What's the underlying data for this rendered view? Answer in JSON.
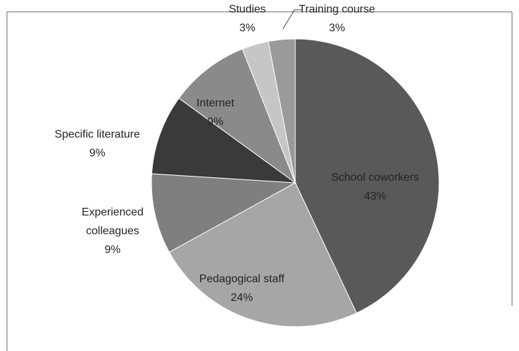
{
  "chart_data": {
    "type": "pie",
    "categories": [
      "School coworkers",
      "Pedagogical staff",
      "Experienced colleagues",
      "Specific literature",
      "Internet",
      "Studies",
      "Training course"
    ],
    "values": [
      43,
      24,
      9,
      9,
      9,
      3,
      3
    ],
    "value_labels": [
      "43%",
      "24%",
      "9%",
      "9%",
      "9%",
      "3%",
      "3%"
    ],
    "colors": [
      "#595959",
      "#a6a6a6",
      "#7f7f7f",
      "#3a3a3a",
      "#8a8a8a",
      "#c6c6c6",
      "#9a9a9a"
    ]
  }
}
